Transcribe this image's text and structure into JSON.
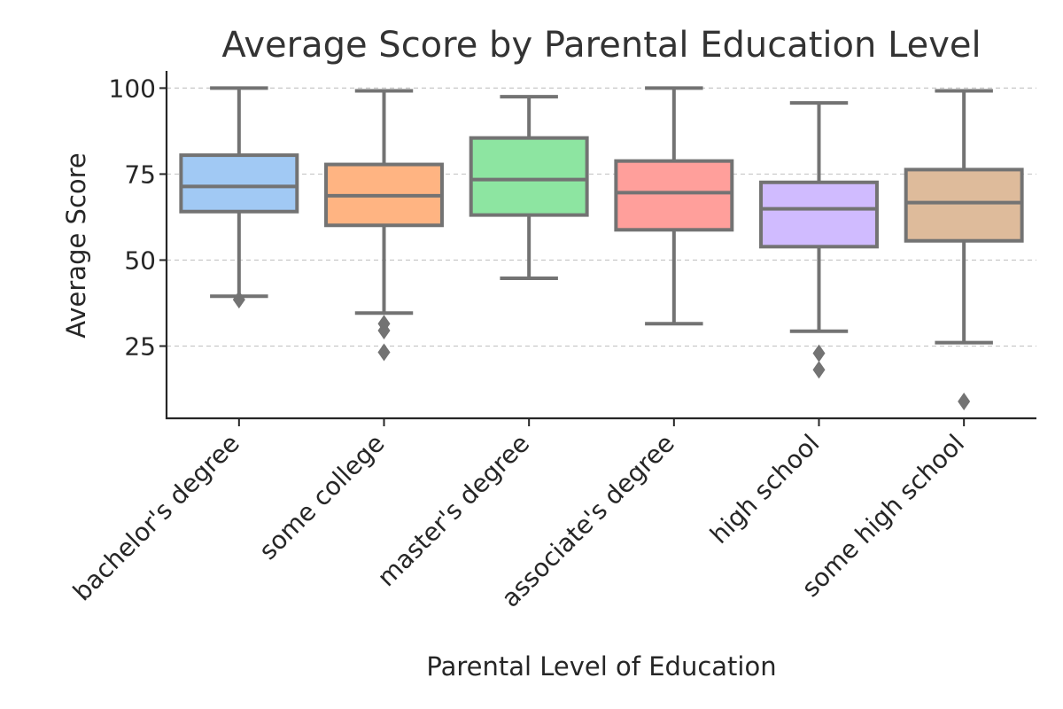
{
  "chart_data": {
    "type": "box",
    "title": "Average Score by Parental Education Level",
    "xlabel": "Parental Level of Education",
    "ylabel": "Average Score",
    "ylim": [
      4,
      105
    ],
    "yticks": [
      25,
      50,
      75,
      100
    ],
    "grid": "y-dashed",
    "categories": [
      "bachelor's degree",
      "some college",
      "master's degree",
      "associate's degree",
      "high school",
      "some high school"
    ],
    "boxes": [
      {
        "q1": 64.1,
        "median": 71.4,
        "q3": 80.5,
        "whisker_low": 39.5,
        "whisker_high": 100,
        "outliers": [
          38.5
        ],
        "color": "#a1c9f4"
      },
      {
        "q1": 60.1,
        "median": 68.7,
        "q3": 77.8,
        "whisker_low": 34.6,
        "whisker_high": 99.2,
        "outliers": [
          31.5,
          29.5,
          23.2
        ],
        "color": "#ffb482"
      },
      {
        "q1": 63.1,
        "median": 73.4,
        "q3": 85.5,
        "whisker_low": 44.7,
        "whisker_high": 97.5,
        "outliers": [],
        "color": "#8de5a1"
      },
      {
        "q1": 58.8,
        "median": 69.6,
        "q3": 78.8,
        "whisker_low": 31.5,
        "whisker_high": 100,
        "outliers": [],
        "color": "#ff9f9b"
      },
      {
        "q1": 53.9,
        "median": 64.9,
        "q3": 72.6,
        "whisker_low": 29.3,
        "whisker_high": 95.7,
        "outliers": [
          22.9,
          18.1
        ],
        "color": "#d0bbff"
      },
      {
        "q1": 55.6,
        "median": 66.7,
        "q3": 76.3,
        "whisker_low": 26.0,
        "whisker_high": 99.2,
        "outliers": [
          8.9
        ],
        "color": "#debb9b"
      }
    ]
  }
}
